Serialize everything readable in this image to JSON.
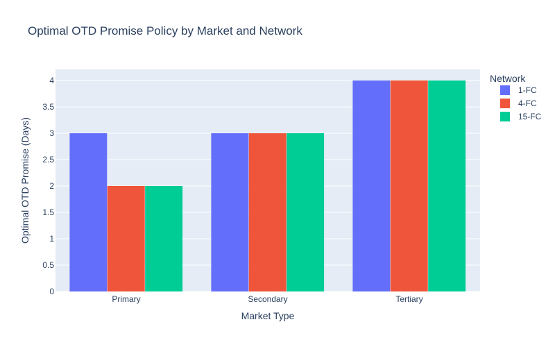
{
  "chart_data": {
    "type": "bar",
    "title": "Optimal OTD Promise Policy by Market and Network",
    "xlabel": "Market Type",
    "ylabel": "Optimal OTD Promise (Days)",
    "categories": [
      "Primary",
      "Secondary",
      "Tertiary"
    ],
    "series": [
      {
        "name": "1-FC",
        "values": [
          3,
          3,
          4
        ],
        "color": "#636efa"
      },
      {
        "name": "4-FC",
        "values": [
          2,
          3,
          4
        ],
        "color": "#ef553b"
      },
      {
        "name": "15-FC",
        "values": [
          2,
          3,
          4
        ],
        "color": "#00cc96"
      }
    ],
    "ylim": [
      0,
      4.21
    ],
    "yticks": [
      0,
      0.5,
      1,
      1.5,
      2,
      2.5,
      3,
      3.5,
      4
    ],
    "ytick_labels": [
      "0",
      "0.5",
      "1",
      "1.5",
      "2",
      "2.5",
      "3",
      "3.5",
      "4"
    ],
    "grid": true,
    "legend_title": "Network",
    "legend_position": "right",
    "plot_background": "#e5ecf6",
    "grid_color": "#ffffff"
  }
}
